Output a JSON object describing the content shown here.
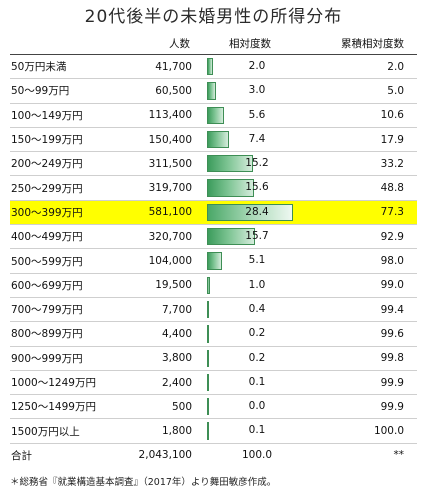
{
  "title": "20代後半の未婚男性の所得分布",
  "chart_data": {
    "type": "table",
    "title": "20代後半の未婚男性の所得分布",
    "columns": [
      "",
      "人数",
      "相対度数",
      "累積相対度数"
    ],
    "rows": [
      {
        "category": "50万円未満",
        "count": "41,700",
        "relative": 2.0,
        "relative_label": "2.0",
        "cumulative": "2.0"
      },
      {
        "category": "50〜99万円",
        "count": "60,500",
        "relative": 3.0,
        "relative_label": "3.0",
        "cumulative": "5.0"
      },
      {
        "category": "100〜149万円",
        "count": "113,400",
        "relative": 5.6,
        "relative_label": "5.6",
        "cumulative": "10.6"
      },
      {
        "category": "150〜199万円",
        "count": "150,400",
        "relative": 7.4,
        "relative_label": "7.4",
        "cumulative": "17.9"
      },
      {
        "category": "200〜249万円",
        "count": "311,500",
        "relative": 15.2,
        "relative_label": "15.2",
        "cumulative": "33.2"
      },
      {
        "category": "250〜299万円",
        "count": "319,700",
        "relative": 15.6,
        "relative_label": "15.6",
        "cumulative": "48.8"
      },
      {
        "category": "300〜399万円",
        "count": "581,100",
        "relative": 28.4,
        "relative_label": "28.4",
        "cumulative": "77.3",
        "highlight": true
      },
      {
        "category": "400〜499万円",
        "count": "320,700",
        "relative": 15.7,
        "relative_label": "15.7",
        "cumulative": "92.9"
      },
      {
        "category": "500〜599万円",
        "count": "104,000",
        "relative": 5.1,
        "relative_label": "5.1",
        "cumulative": "98.0"
      },
      {
        "category": "600〜699万円",
        "count": "19,500",
        "relative": 1.0,
        "relative_label": "1.0",
        "cumulative": "99.0"
      },
      {
        "category": "700〜799万円",
        "count": "7,700",
        "relative": 0.4,
        "relative_label": "0.4",
        "cumulative": "99.4"
      },
      {
        "category": "800〜899万円",
        "count": "4,400",
        "relative": 0.2,
        "relative_label": "0.2",
        "cumulative": "99.6"
      },
      {
        "category": "900〜999万円",
        "count": "3,800",
        "relative": 0.2,
        "relative_label": "0.2",
        "cumulative": "99.8"
      },
      {
        "category": "1000〜1249万円",
        "count": "2,400",
        "relative": 0.1,
        "relative_label": "0.1",
        "cumulative": "99.9"
      },
      {
        "category": "1250〜1499万円",
        "count": "500",
        "relative": 0.0,
        "relative_label": "0.0",
        "cumulative": "99.9"
      },
      {
        "category": "1500万円以上",
        "count": "1,800",
        "relative": 0.1,
        "relative_label": "0.1",
        "cumulative": "100.0"
      }
    ],
    "total": {
      "category": "合計",
      "count": "2,043,100",
      "relative_label": "100.0",
      "cumulative": "**"
    },
    "bar_max": 28.4,
    "highlight_color": "#ffff00",
    "bar_color": "#5bb374"
  },
  "source_note": "＊総務省『就業構造基本調査』（2017年）より舞田敏彦作成。"
}
